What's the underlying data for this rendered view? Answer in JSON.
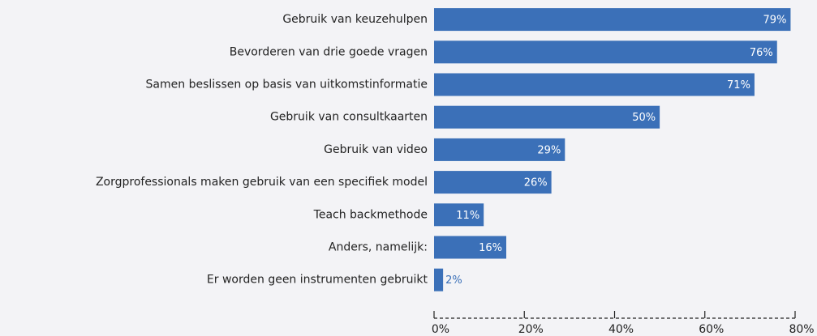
{
  "chart_data": {
    "type": "barh",
    "categories": [
      "Gebruik van keuzehulpen",
      "Bevorderen van drie goede vragen",
      "Samen beslissen op basis van uitkomstinformatie",
      "Gebruik van consultkaarten",
      "Gebruik van video",
      "Zorgprofessionals maken gebruik van een specifiek model",
      "Teach backmethode",
      "Anders, namelijk:",
      "Er worden geen instrumenten gebruikt"
    ],
    "values": [
      79,
      76,
      71,
      50,
      29,
      26,
      11,
      16,
      2
    ],
    "value_labels": [
      "79%",
      "76%",
      "71%",
      "50%",
      "29%",
      "26%",
      "11%",
      "16%",
      "2%"
    ],
    "color": "#3b70b8",
    "xlim": [
      0,
      80
    ],
    "xticks": [
      {
        "value": 0,
        "label": "0%"
      },
      {
        "value": 20,
        "label": "20%"
      },
      {
        "value": 40,
        "label": "40%"
      },
      {
        "value": 60,
        "label": "60%"
      },
      {
        "value": 80,
        "label": "80%"
      }
    ]
  }
}
